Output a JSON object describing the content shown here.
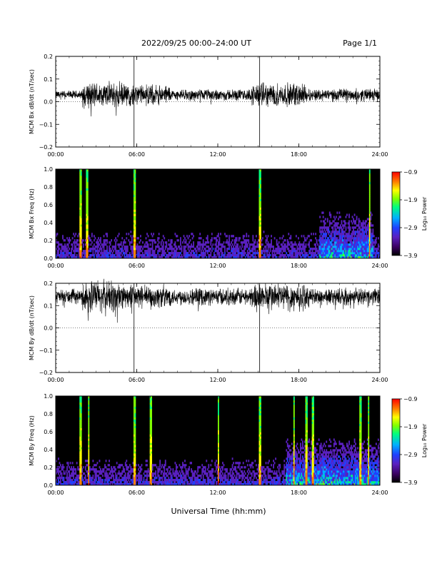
{
  "header": {
    "title": "2022/09/25  00:00–24:00 UT",
    "page": "Page 1/1"
  },
  "footer": {
    "xlabel": "Universal Time (hh:mm)"
  },
  "colors": {
    "trace": "#000000",
    "spectrogram_background": "#000000",
    "colormap": [
      "#000000",
      "#3a0060",
      "#5a20c0",
      "#2040ff",
      "#00b0ff",
      "#00ff80",
      "#80ff00",
      "#ffff00",
      "#ff8000",
      "#ff0000"
    ]
  },
  "chart_data": [
    {
      "type": "line",
      "ylabel": "MCM Bx dB/dt (nT/sec)",
      "ylim": [
        -0.2,
        0.2
      ],
      "yticks": [
        "0.2",
        "0.1",
        "0.0",
        "−0.1",
        "−0.2"
      ],
      "xticks": [
        "00:00",
        "06:00",
        "12:00",
        "18:00",
        "24:00"
      ],
      "xlim_hours": [
        0,
        24
      ],
      "baseline": 0.03,
      "spikes_hours": [
        5.8,
        15.1
      ],
      "activity": [
        {
          "t": [
            0,
            2
          ],
          "amp": 0.015
        },
        {
          "t": [
            2,
            5
          ],
          "amp": 0.045
        },
        {
          "t": [
            5,
            8.5
          ],
          "amp": 0.035
        },
        {
          "t": [
            8.5,
            11
          ],
          "amp": 0.018
        },
        {
          "t": [
            11,
            14.5
          ],
          "amp": 0.02
        },
        {
          "t": [
            14.5,
            18.5
          ],
          "amp": 0.04
        },
        {
          "t": [
            18.5,
            24
          ],
          "amp": 0.022
        }
      ]
    },
    {
      "type": "heatmap",
      "ylabel": "MCM Bx Freq (Hz)",
      "ylim": [
        0.0,
        1.0
      ],
      "yticks": [
        "1.0",
        "0.8",
        "0.6",
        "0.4",
        "0.2",
        "0.0"
      ],
      "xticks": [
        "00:00",
        "06:00",
        "12:00",
        "18:00",
        "24:00"
      ],
      "xlim_hours": [
        0,
        24
      ],
      "colorbar": {
        "label": "Log₁₀ Power",
        "ticks": [
          "−0.9",
          "−1.9",
          "−2.9",
          "−3.9"
        ],
        "range": [
          -3.9,
          -0.9
        ]
      },
      "broadband_hours": [
        1.8,
        2.3,
        5.8,
        15.1,
        23.2
      ],
      "enhanced_hours": [
        19.5,
        23.5
      ]
    },
    {
      "type": "line",
      "ylabel": "MCM By dB/dt (nT/sec)",
      "ylim": [
        -0.2,
        0.2
      ],
      "yticks": [
        "0.2",
        "0.1",
        "0.0",
        "−0.1",
        "−0.2"
      ],
      "xticks": [
        "00:00",
        "06:00",
        "12:00",
        "18:00",
        "24:00"
      ],
      "xlim_hours": [
        0,
        24
      ],
      "baseline": 0.14,
      "spikes_hours": [
        5.8,
        15.1
      ],
      "activity": [
        {
          "t": [
            0,
            2
          ],
          "amp": 0.025
        },
        {
          "t": [
            2,
            5
          ],
          "amp": 0.06
        },
        {
          "t": [
            5,
            8.5
          ],
          "amp": 0.04
        },
        {
          "t": [
            8.5,
            11
          ],
          "amp": 0.03
        },
        {
          "t": [
            11,
            14.5
          ],
          "amp": 0.03
        },
        {
          "t": [
            14.5,
            18.5
          ],
          "amp": 0.05
        },
        {
          "t": [
            18.5,
            24
          ],
          "amp": 0.03
        }
      ]
    },
    {
      "type": "heatmap",
      "ylabel": "MCM By Freq (Hz)",
      "ylim": [
        0.0,
        1.0
      ],
      "yticks": [
        "1.0",
        "0.8",
        "0.6",
        "0.4",
        "0.2",
        "0.0"
      ],
      "xticks": [
        "00:00",
        "06:00",
        "12:00",
        "18:00",
        "24:00"
      ],
      "xlim_hours": [
        0,
        24
      ],
      "colorbar": {
        "label": "Log₁₀ Power",
        "ticks": [
          "−0.9",
          "−1.9",
          "−2.9",
          "−3.9"
        ],
        "range": [
          -3.9,
          -0.9
        ]
      },
      "broadband_hours": [
        1.8,
        2.4,
        5.8,
        7.0,
        12.0,
        15.1,
        17.6,
        18.5,
        19.0,
        22.5,
        23.1
      ],
      "enhanced_hours": [
        17,
        24
      ]
    }
  ]
}
